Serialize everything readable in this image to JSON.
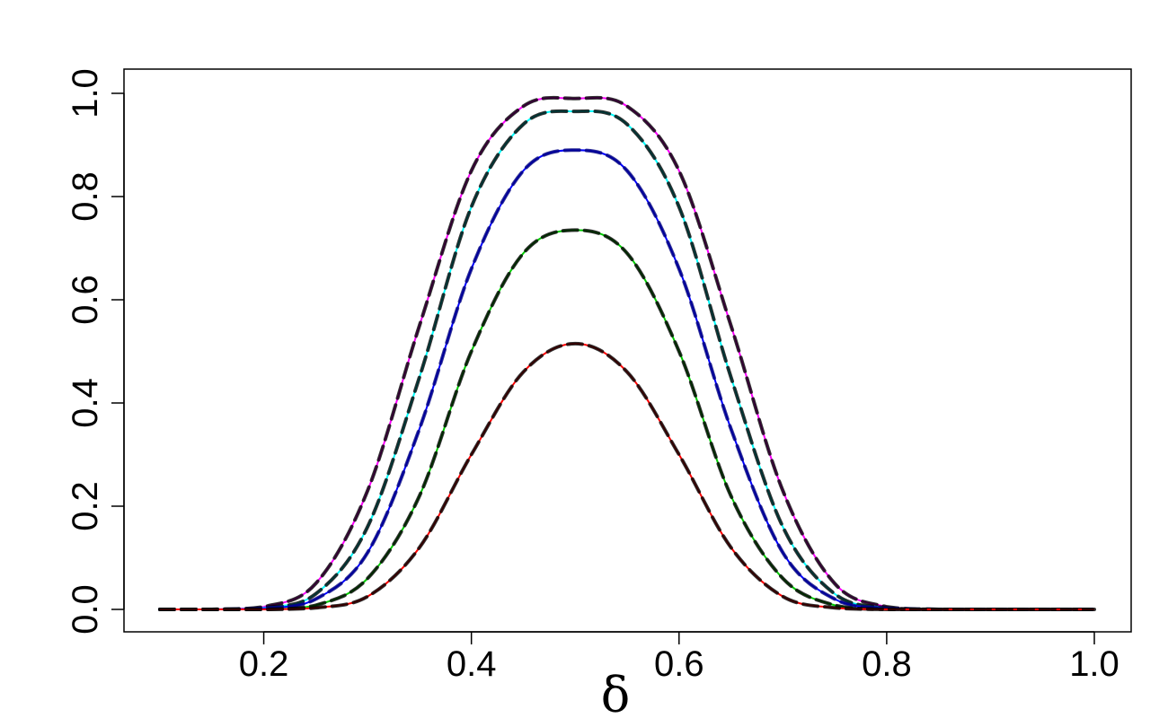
{
  "chart_data": {
    "type": "line",
    "title": "",
    "xlabel": "δ",
    "ylabel": "",
    "xlim": [
      0.1,
      1.0
    ],
    "ylim": [
      0.0,
      1.0
    ],
    "grid": false,
    "legend": "none",
    "x_ticks": [
      "0.2",
      "0.4",
      "0.6",
      "0.8",
      "1.0"
    ],
    "y_ticks": [
      "0.0",
      "0.2",
      "0.4",
      "0.6",
      "0.8",
      "1.0"
    ],
    "x": [
      0.1,
      0.15,
      0.2,
      0.25,
      0.3,
      0.35,
      0.4,
      0.45,
      0.5,
      0.55,
      0.6,
      0.65,
      0.7,
      0.75,
      0.8,
      0.85,
      0.9,
      0.95,
      1.0
    ],
    "series": [
      {
        "color": "#ff00ff",
        "dashed_overlay": "#000000",
        "values": [
          0.0,
          0.0,
          0.005,
          0.05,
          0.23,
          0.55,
          0.85,
          0.975,
          0.99,
          0.975,
          0.85,
          0.55,
          0.23,
          0.05,
          0.005,
          0.0,
          0.0,
          0.0,
          0.0
        ]
      },
      {
        "color": "#00ffff",
        "dashed_overlay": "#000000",
        "values": [
          0.0,
          0.0,
          0.003,
          0.03,
          0.16,
          0.45,
          0.78,
          0.94,
          0.965,
          0.94,
          0.78,
          0.45,
          0.16,
          0.03,
          0.003,
          0.0,
          0.0,
          0.0,
          0.0
        ]
      },
      {
        "color": "#0000ff",
        "dashed_overlay": "#000080",
        "values": [
          0.0,
          0.0,
          0.002,
          0.02,
          0.11,
          0.35,
          0.66,
          0.85,
          0.89,
          0.85,
          0.66,
          0.35,
          0.11,
          0.02,
          0.002,
          0.0,
          0.0,
          0.0,
          0.0
        ]
      },
      {
        "color": "#00cc00",
        "dashed_overlay": "#000000",
        "values": [
          0.0,
          0.0,
          0.0,
          0.008,
          0.06,
          0.22,
          0.5,
          0.69,
          0.735,
          0.69,
          0.5,
          0.22,
          0.06,
          0.008,
          0.0,
          0.0,
          0.0,
          0.0,
          0.0
        ]
      },
      {
        "color": "#ff0000",
        "dashed_overlay": "#000000",
        "values": [
          0.0,
          0.0,
          0.0,
          0.003,
          0.025,
          0.12,
          0.3,
          0.46,
          0.515,
          0.46,
          0.3,
          0.12,
          0.025,
          0.003,
          0.0,
          0.0,
          0.0,
          0.0,
          0.0
        ]
      }
    ]
  }
}
